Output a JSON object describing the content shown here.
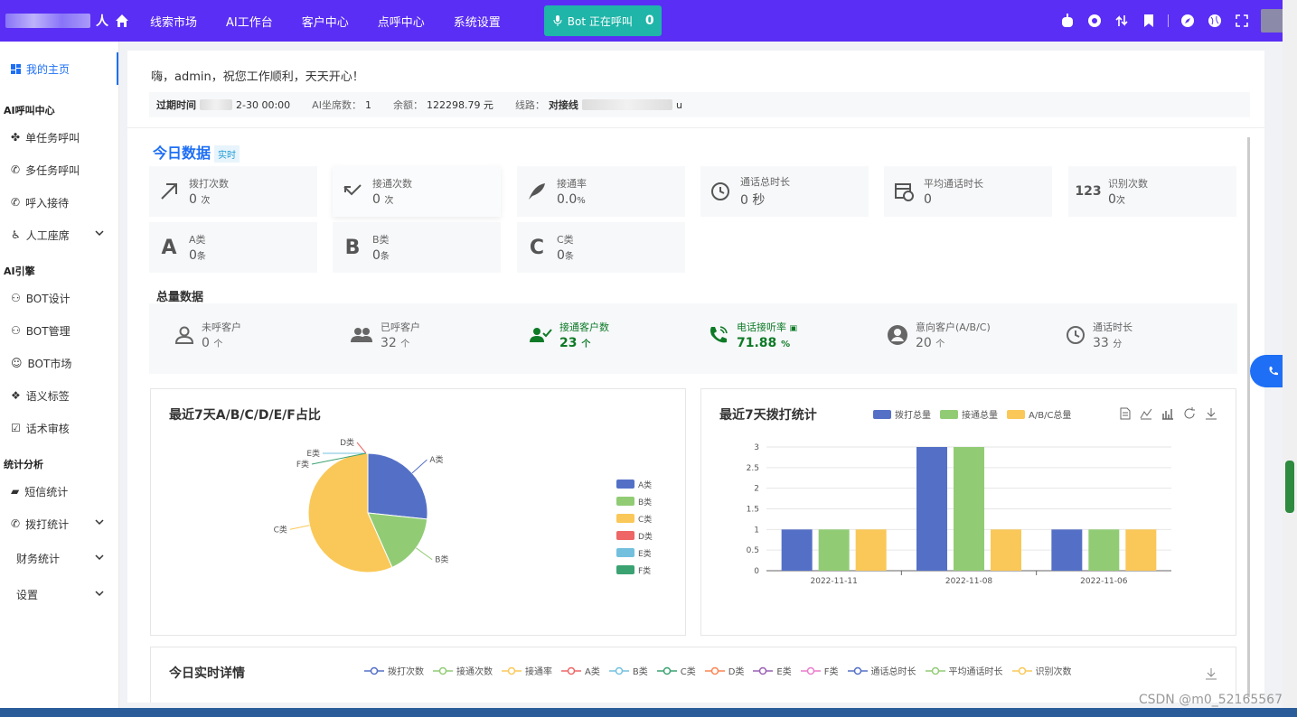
{
  "topbar": {
    "logo_suffix": "人",
    "nav": [
      "线索市场",
      "AI工作台",
      "客户中心",
      "点呼中心",
      "系统设置"
    ],
    "bot_label": "Bot 正在呼叫",
    "bot_count": "0"
  },
  "sidebar": {
    "home": "我的主页",
    "groups": [
      {
        "title": "AI呼叫中心",
        "items": [
          "单任务呼叫",
          "多任务呼叫",
          "呼入接待",
          "人工座席"
        ]
      },
      {
        "title": "AI引擎",
        "items": [
          "BOT设计",
          "BOT管理",
          "BOT市场",
          "语义标签",
          "话术审核"
        ]
      },
      {
        "title": "统计分析",
        "items": [
          "短信统计",
          "拨打统计",
          "财务统计",
          "设置"
        ]
      }
    ]
  },
  "greeting": "嗨，admin，祝您工作顺利，天天开心！",
  "info": {
    "expire_label": "过期时间",
    "expire_value": "2-30 00:00",
    "seats_label": "AI坐席数：",
    "seats_value": "1",
    "balance_label": "余额：",
    "balance_value": "122298.79 元",
    "line_label": "线路：",
    "line_value": "对接线",
    "line_suffix": "u"
  },
  "today": {
    "title": "今日数据",
    "tag": "实时",
    "cards": [
      {
        "label": "拨打次数",
        "value": "0",
        "unit": "次"
      },
      {
        "label": "接通次数",
        "value": "0",
        "unit": "次"
      },
      {
        "label": "接通率",
        "value": "0.0",
        "unit": "%"
      },
      {
        "label": "通话总时长",
        "value": "0 秒",
        "unit": ""
      },
      {
        "label": "平均通话时长",
        "value": "0",
        "unit": ""
      },
      {
        "label": "识别次数",
        "value": "0",
        "unit": "次"
      },
      {
        "label": "A类",
        "value": "0",
        "unit": "条"
      },
      {
        "label": "B类",
        "value": "0",
        "unit": "条"
      },
      {
        "label": "C类",
        "value": "0",
        "unit": "条"
      }
    ],
    "letters": [
      "A",
      "B",
      "C"
    ],
    "icon_123": "123"
  },
  "total": {
    "title": "总量数据",
    "items": [
      {
        "label": "未呼客户",
        "value": "0",
        "unit": "个"
      },
      {
        "label": "已呼客户",
        "value": "32",
        "unit": "个"
      },
      {
        "label": "接通客户数",
        "value": "23",
        "unit": "个"
      },
      {
        "label": "电话接听率",
        "value": "71.88",
        "unit": "%"
      },
      {
        "label": "意向客户(A/B/C)",
        "value": "20",
        "unit": "个"
      },
      {
        "label": "通话时长",
        "value": "33",
        "unit": "分"
      }
    ]
  },
  "pie_panel": {
    "title": "最近7天A/B/C/D/E/F占比",
    "chart_data": {
      "type": "pie",
      "categories": [
        "A类",
        "B类",
        "C类",
        "D类",
        "E类",
        "F类"
      ],
      "values": [
        8,
        5,
        17,
        0,
        0,
        0
      ],
      "colors": [
        "#5470c6",
        "#91cc75",
        "#fac858",
        "#ee6666",
        "#73c0de",
        "#3ba272"
      ],
      "legend": "right"
    }
  },
  "bar_panel": {
    "title": "最近7天拨打统计",
    "chart_data": {
      "type": "bar",
      "categories": [
        "2022-11-11",
        "2022-11-08",
        "2022-11-06"
      ],
      "series": [
        {
          "name": "拨打总量",
          "values": [
            1,
            3,
            1
          ],
          "color": "#5470c6"
        },
        {
          "name": "接通总量",
          "values": [
            1,
            3,
            1
          ],
          "color": "#91cc75"
        },
        {
          "name": "A/B/C总量",
          "values": [
            1,
            1,
            1
          ],
          "color": "#fac858"
        }
      ],
      "yticks": [
        "0",
        "0.5",
        "1",
        "1.5",
        "2",
        "2.5",
        "3"
      ],
      "ylim": [
        0,
        3
      ],
      "legend": "top"
    }
  },
  "realtime": {
    "title": "今日实时详情",
    "legend": [
      {
        "name": "拨打次数",
        "color": "#5470c6"
      },
      {
        "name": "接通次数",
        "color": "#91cc75"
      },
      {
        "name": "接通率",
        "color": "#fac858"
      },
      {
        "name": "A类",
        "color": "#ee6666"
      },
      {
        "name": "B类",
        "color": "#73c0de"
      },
      {
        "name": "C类",
        "color": "#3ba272"
      },
      {
        "name": "D类",
        "color": "#fc8452"
      },
      {
        "name": "E类",
        "color": "#9a60b4"
      },
      {
        "name": "F类",
        "color": "#ea7ccc"
      },
      {
        "name": "通话总时长",
        "color": "#5470c6"
      },
      {
        "name": "平均通话时长",
        "color": "#91cc75"
      },
      {
        "name": "识别次数",
        "color": "#fac858"
      }
    ]
  },
  "watermark": "CSDN @m0_52165567"
}
